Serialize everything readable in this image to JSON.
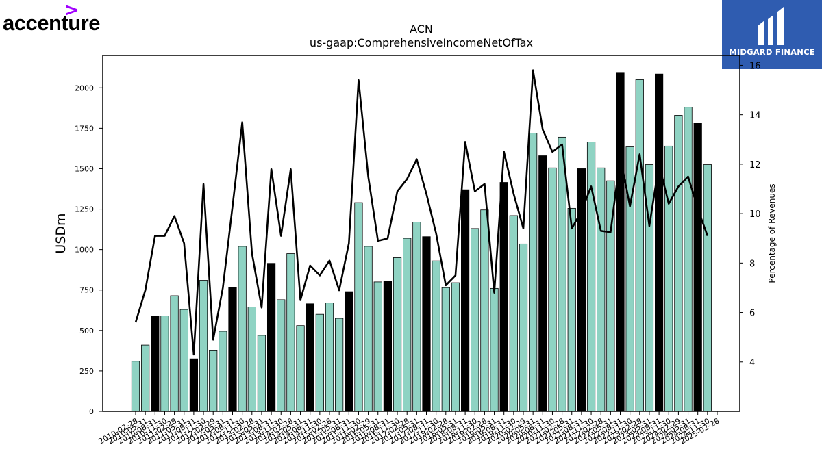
{
  "brand": {
    "left_logo_text": "accenture",
    "left_logo_mark": ">",
    "right_logo_text": "MIDGARD FINANCE",
    "right_logo_color": "#2f5cb0"
  },
  "chart_data": {
    "type": "bar",
    "title": "ACN",
    "subtitle": "us-gaap:ComprehensiveIncomeNetOfTax",
    "ylabel": "USDm",
    "y2label": "Percentage of Revenues",
    "ylim": [
      0,
      2200
    ],
    "y2lim": [
      2,
      16.4
    ],
    "yticks": [
      0,
      250,
      500,
      750,
      1000,
      1250,
      1500,
      1750,
      2000
    ],
    "y2ticks": [
      4,
      6,
      8,
      10,
      12,
      14,
      16
    ],
    "bar_color": "#8fd3c3",
    "bar_highlight_color": "#000000",
    "line_color": "#000000",
    "categories": [
      "2010-02-28",
      "2010-05-31",
      "2010-08-31",
      "2010-11-30",
      "2011-02-28",
      "2011-05-31",
      "2011-08-31",
      "2011-11-30",
      "2012-02-29",
      "2012-05-31",
      "2012-08-31",
      "2012-11-30",
      "2013-02-28",
      "2013-05-31",
      "2013-08-31",
      "2013-11-30",
      "2014-02-28",
      "2014-05-31",
      "2014-08-31",
      "2014-11-30",
      "2015-02-28",
      "2015-05-31",
      "2015-08-31",
      "2015-11-30",
      "2016-02-29",
      "2016-05-31",
      "2016-08-31",
      "2016-11-30",
      "2017-02-28",
      "2017-05-31",
      "2017-08-31",
      "2017-11-30",
      "2018-02-28",
      "2018-05-31",
      "2018-08-31",
      "2018-11-30",
      "2019-02-28",
      "2019-05-31",
      "2019-08-31",
      "2019-11-30",
      "2020-02-29",
      "2020-05-31",
      "2020-08-31",
      "2020-11-30",
      "2021-02-28",
      "2021-05-31",
      "2021-08-31",
      "2021-11-30",
      "2022-02-28",
      "2022-05-31",
      "2022-08-31",
      "2022-11-30",
      "2023-02-28",
      "2023-05-31",
      "2023-08-31",
      "2023-11-30",
      "2024-02-29",
      "2024-05-31",
      "2024-08-31",
      "2024-11-30",
      "2025-02-28"
    ],
    "series": [
      {
        "kind": "bar",
        "values": [
          310,
          410,
          590,
          590,
          715,
          630,
          325,
          810,
          375,
          495,
          765,
          1020,
          645,
          470,
          915,
          690,
          975,
          530,
          665,
          600,
          670,
          575,
          740,
          1290,
          1020,
          800,
          805,
          950,
          1070,
          1170,
          1080,
          930,
          765,
          795,
          1370,
          1130,
          1245,
          760,
          1415,
          1210,
          1035,
          1720,
          1580,
          1505,
          1695,
          1255,
          1500,
          1665,
          1505,
          1425,
          2095,
          1635,
          2050,
          1525,
          2085,
          1640,
          1830,
          1880,
          1780,
          1525,
          0
        ],
        "highlight": [
          false,
          false,
          true,
          false,
          false,
          false,
          true,
          false,
          false,
          false,
          true,
          false,
          false,
          false,
          true,
          false,
          false,
          false,
          true,
          false,
          false,
          false,
          true,
          false,
          false,
          false,
          true,
          false,
          false,
          false,
          true,
          false,
          false,
          false,
          true,
          false,
          false,
          false,
          true,
          false,
          false,
          false,
          true,
          false,
          false,
          false,
          true,
          false,
          false,
          false,
          true,
          false,
          false,
          false,
          true,
          false,
          false,
          false,
          true,
          false,
          false
        ]
      },
      {
        "kind": "line",
        "axis": "right",
        "values": [
          5.6,
          6.9,
          9.1,
          9.1,
          9.9,
          8.8,
          4.3,
          11.2,
          4.9,
          7.0,
          10.3,
          13.7,
          8.4,
          6.2,
          11.8,
          9.1,
          11.8,
          6.5,
          7.9,
          7.5,
          8.1,
          6.9,
          8.8,
          15.4,
          11.5,
          8.9,
          9.0,
          10.9,
          11.4,
          12.2,
          10.8,
          9.2,
          7.1,
          7.5,
          12.9,
          10.9,
          11.2,
          6.8,
          12.5,
          10.8,
          9.4,
          15.8,
          13.4,
          12.5,
          12.8,
          9.4,
          10.1,
          11.1,
          9.3,
          9.25,
          12.3,
          10.3,
          12.4,
          9.5,
          12.0,
          10.4,
          11.1,
          11.5,
          10.2,
          9.1,
          null
        ]
      }
    ],
    "grid": false,
    "legend": "none"
  }
}
